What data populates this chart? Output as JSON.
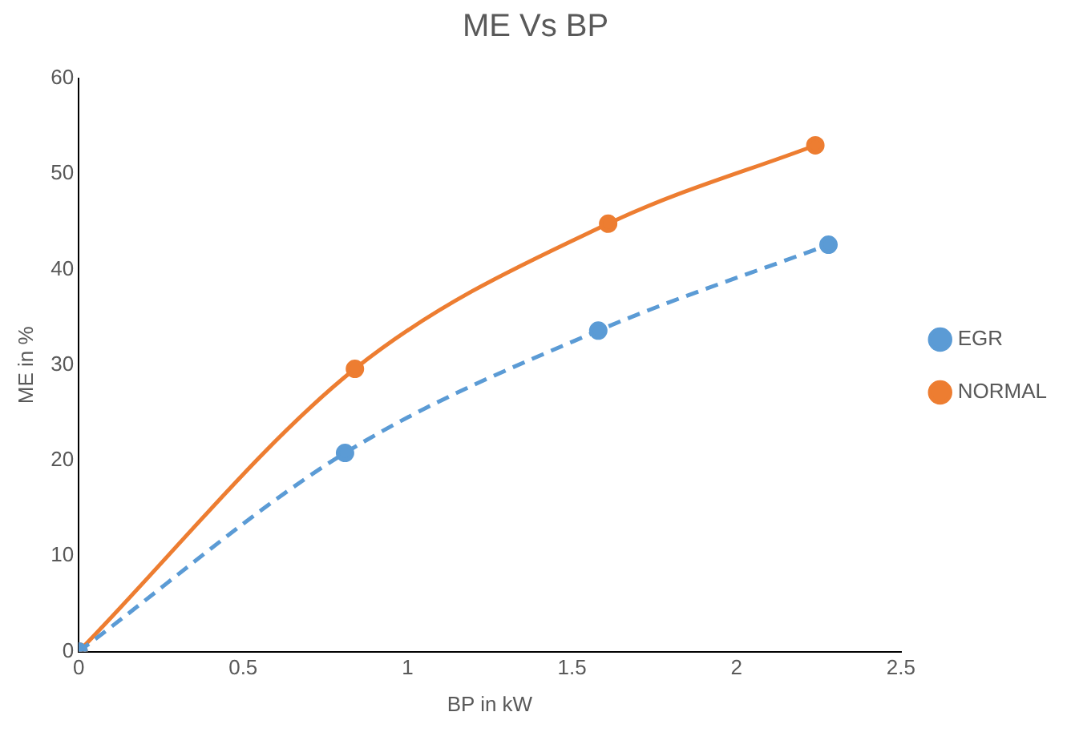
{
  "chart_data": {
    "type": "line",
    "title": "ME Vs BP",
    "xlabel": "BP in kW",
    "ylabel": "ME in %",
    "xlim": [
      0,
      2.5
    ],
    "xticks": [
      0,
      0.5,
      1,
      1.5,
      2,
      2.5
    ],
    "ylim": [
      0,
      60
    ],
    "yticks": [
      0,
      10,
      20,
      30,
      40,
      50,
      60
    ],
    "grid": false,
    "legend": "right",
    "marker": "circle",
    "series": [
      {
        "name": "EGR",
        "color": "#5b9bd5",
        "line_style": "dashed",
        "x": [
          0,
          0.81,
          1.58,
          2.28
        ],
        "values": [
          0,
          20.8,
          33.6,
          42.6
        ]
      },
      {
        "name": "NORMAL",
        "color": "#ed7d31",
        "line_style": "solid",
        "x": [
          0,
          0.84,
          1.61,
          2.24
        ],
        "values": [
          0,
          29.6,
          44.8,
          53
        ]
      }
    ]
  }
}
